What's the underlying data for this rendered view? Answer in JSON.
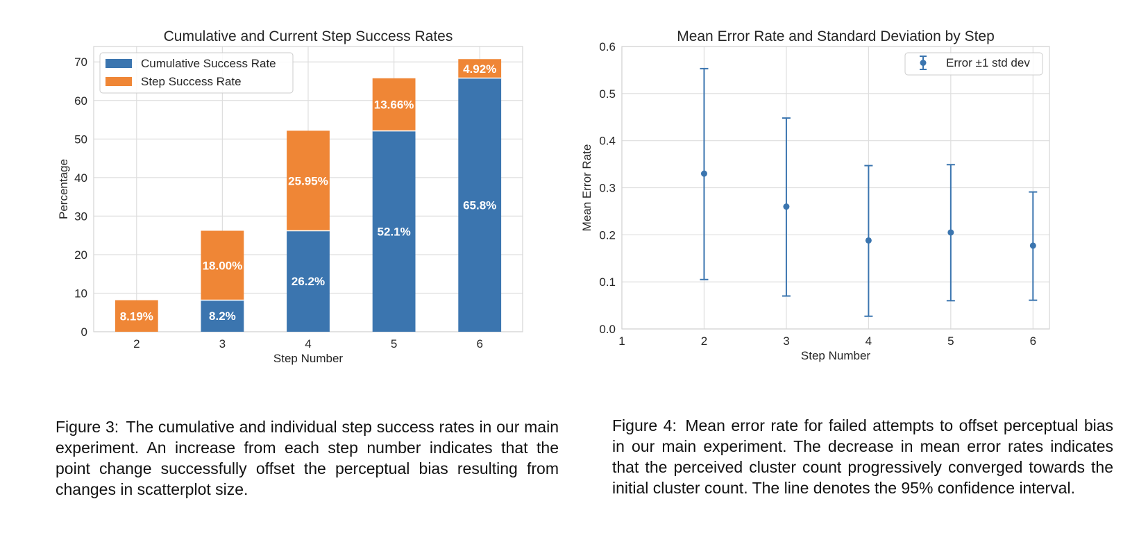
{
  "figures": [
    {
      "caption_label": "Figure 3:",
      "caption_text": "The cumulative and individual step success rates in our main experiment. An increase from each step number indicates that the point change successfully offset the perceptual bias resulting from changes in scatterplot size."
    },
    {
      "caption_label": "Figure 4:",
      "caption_text": "Mean error rate for failed attempts to offset perceptual bias in our main experiment. The decrease in mean error rates indicates that the perceived cluster count progressively converged towards the initial cluster count. The line denotes the 95% confidence interval."
    }
  ],
  "chart_data": [
    {
      "type": "bar",
      "stacked": true,
      "title": "Cumulative and Current Step Success Rates",
      "xlabel": "Step Number",
      "ylabel": "Percentage",
      "categories": [
        "2",
        "3",
        "4",
        "5",
        "6"
      ],
      "ylim": [
        0,
        74
      ],
      "yticks": [
        0,
        10,
        20,
        30,
        40,
        50,
        60,
        70
      ],
      "grid": true,
      "legend_position": "top-left",
      "series": [
        {
          "name": "Cumulative Success Rate",
          "color": "#3b75af",
          "values": [
            0,
            8.2,
            26.2,
            52.1,
            65.8
          ],
          "labels": [
            "",
            "8.2%",
            "26.2%",
            "52.1%",
            "65.8%"
          ]
        },
        {
          "name": "Step Success Rate",
          "color": "#ef8636",
          "values": [
            8.19,
            18.0,
            25.95,
            13.66,
            4.92
          ],
          "labels": [
            "8.19%",
            "18.00%",
            "25.95%",
            "13.66%",
            "4.92%"
          ]
        }
      ]
    },
    {
      "type": "scatter",
      "errorbars": true,
      "title": "Mean Error Rate and Standard Deviation by Step",
      "xlabel": "Step Number",
      "ylabel": "Mean Error Rate",
      "xlim": [
        1,
        6.2
      ],
      "xticks": [
        1,
        2,
        3,
        4,
        5,
        6
      ],
      "ylim": [
        0,
        0.6
      ],
      "yticks": [
        "0.0",
        "0.1",
        "0.2",
        "0.3",
        "0.4",
        "0.5",
        "0.6"
      ],
      "grid": true,
      "legend_position": "top-right",
      "series": [
        {
          "name": "Error ±1 std dev",
          "color": "#3b75af",
          "x": [
            2,
            3,
            4,
            5,
            6
          ],
          "y": [
            0.33,
            0.26,
            0.188,
            0.205,
            0.177
          ],
          "yerr_low": [
            0.105,
            0.07,
            0.027,
            0.06,
            0.061
          ],
          "yerr_high": [
            0.553,
            0.448,
            0.347,
            0.349,
            0.291
          ]
        }
      ]
    }
  ]
}
